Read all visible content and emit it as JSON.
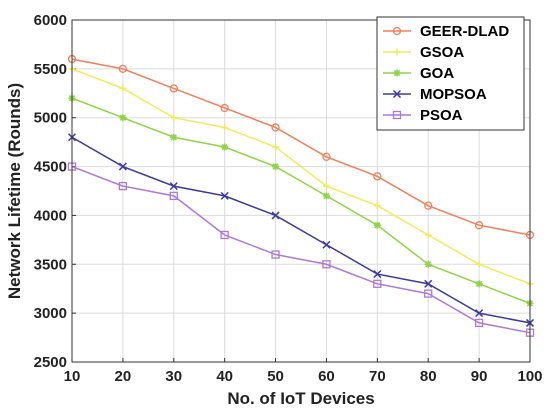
{
  "chart_data": {
    "type": "line",
    "xlabel": "No. of IoT Devices",
    "ylabel": "Network Lifetime (Rounds)",
    "x": [
      10,
      20,
      30,
      40,
      50,
      60,
      70,
      80,
      90,
      100
    ],
    "xlim": [
      10,
      100
    ],
    "ylim": [
      2500,
      6000
    ],
    "xticks": [
      "10",
      "20",
      "30",
      "40",
      "50",
      "60",
      "70",
      "80",
      "90",
      "100"
    ],
    "yticks": [
      "2500",
      "3000",
      "3500",
      "4000",
      "4500",
      "5000",
      "5500",
      "6000"
    ],
    "grid": true,
    "legend_position": "top-right",
    "series": [
      {
        "name": "GEER-DLAD",
        "color": "#f07f5a",
        "marker": "circle",
        "values": [
          5600,
          5500,
          5300,
          5100,
          4900,
          4600,
          4400,
          4100,
          3900,
          3800
        ]
      },
      {
        "name": "GSOA",
        "color": "#f2ea5e",
        "marker": "plus",
        "values": [
          5500,
          5300,
          5000,
          4900,
          4700,
          4300,
          4100,
          3800,
          3500,
          3300
        ]
      },
      {
        "name": "GOA",
        "color": "#8fd44a",
        "marker": "star",
        "values": [
          5200,
          5000,
          4800,
          4700,
          4500,
          4200,
          3900,
          3500,
          3300,
          3100
        ]
      },
      {
        "name": "MOPSOA",
        "color": "#3e3a9e",
        "marker": "x",
        "values": [
          4800,
          4500,
          4300,
          4200,
          4000,
          3700,
          3400,
          3300,
          3000,
          2900
        ]
      },
      {
        "name": "PSOA",
        "color": "#ad79d8",
        "marker": "square",
        "values": [
          4500,
          4300,
          4200,
          3800,
          3600,
          3500,
          3300,
          3200,
          2900,
          2800
        ]
      }
    ]
  }
}
